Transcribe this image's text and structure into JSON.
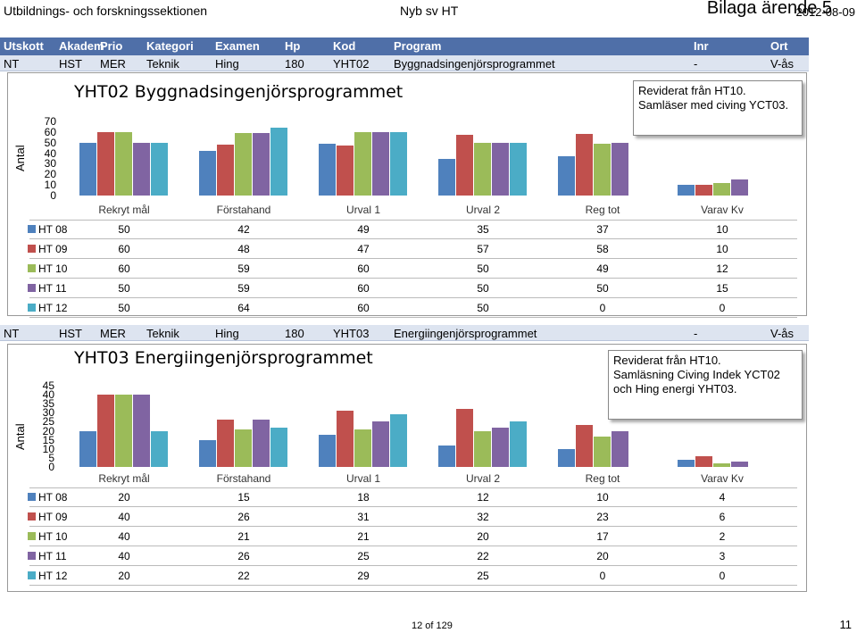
{
  "header": {
    "left": "Utbildnings- och forskningssektionen",
    "center": "Nyb sv HT",
    "bilaga": "Bilaga ärende 5",
    "date": "2012-08-09"
  },
  "columns": [
    "Utskott",
    "Akadem",
    "Prio",
    "Kategori",
    "Examen",
    "Hp",
    "Kod",
    "Program",
    "Inr",
    "Ort"
  ],
  "rows": [
    [
      "NT",
      "HST",
      "MER",
      "Teknik",
      "Hing",
      "180",
      "YHT02",
      "Byggnadsingenjörsprogrammet",
      "-",
      "V-ås"
    ],
    [
      "NT",
      "HST",
      "MER",
      "Teknik",
      "Hing",
      "180",
      "YHT03",
      "Energiingenjörsprogrammet",
      "-",
      "V-ås"
    ]
  ],
  "colors": {
    "HT 08": "#4f81bd",
    "HT 09": "#c0504d",
    "HT 10": "#9bbb59",
    "HT 11": "#8064a2",
    "HT 12": "#4bacc6"
  },
  "notes": [
    [
      "Reviderat från HT10.",
      "Samläser med civing YCT03."
    ],
    [
      "Reviderat från HT10.",
      "Samläsning Civing Indek YCT02",
      "och Hing energi YHT03."
    ]
  ],
  "chart_data": [
    {
      "type": "bar",
      "title": "YHT02 Byggnadsingenjörsprogrammet",
      "ylabel": "Antal",
      "ylim": [
        0,
        70
      ],
      "yticks": [
        70,
        60,
        50,
        40,
        30,
        20,
        10,
        0
      ],
      "categories": [
        "Rekryt mål",
        "Förstahand",
        "Urval 1",
        "Urval 2",
        "Reg tot",
        "Varav Kv"
      ],
      "series": [
        {
          "name": "HT 08",
          "values": [
            50,
            42,
            49,
            35,
            37,
            10
          ]
        },
        {
          "name": "HT 09",
          "values": [
            60,
            48,
            47,
            57,
            58,
            10
          ]
        },
        {
          "name": "HT 10",
          "values": [
            60,
            59,
            60,
            50,
            49,
            12
          ]
        },
        {
          "name": "HT 11",
          "values": [
            50,
            59,
            60,
            50,
            50,
            15
          ]
        },
        {
          "name": "HT 12",
          "values": [
            50,
            64,
            60,
            50,
            0,
            0
          ]
        }
      ]
    },
    {
      "type": "bar",
      "title": "YHT03 Energiingenjörsprogrammet",
      "ylabel": "Antal",
      "ylim": [
        0,
        45
      ],
      "yticks": [
        45,
        40,
        35,
        30,
        25,
        20,
        15,
        10,
        5,
        0
      ],
      "categories": [
        "Rekryt mål",
        "Förstahand",
        "Urval 1",
        "Urval 2",
        "Reg tot",
        "Varav Kv"
      ],
      "series": [
        {
          "name": "HT 08",
          "values": [
            20,
            15,
            18,
            12,
            10,
            4
          ]
        },
        {
          "name": "HT 09",
          "values": [
            40,
            26,
            31,
            32,
            23,
            6
          ]
        },
        {
          "name": "HT 10",
          "values": [
            40,
            21,
            21,
            20,
            17,
            2
          ]
        },
        {
          "name": "HT 11",
          "values": [
            40,
            26,
            25,
            22,
            20,
            3
          ]
        },
        {
          "name": "HT 12",
          "values": [
            20,
            22,
            29,
            25,
            0,
            0
          ]
        }
      ]
    }
  ],
  "footer": {
    "page_of": "12 of 129",
    "page_num": "11"
  }
}
